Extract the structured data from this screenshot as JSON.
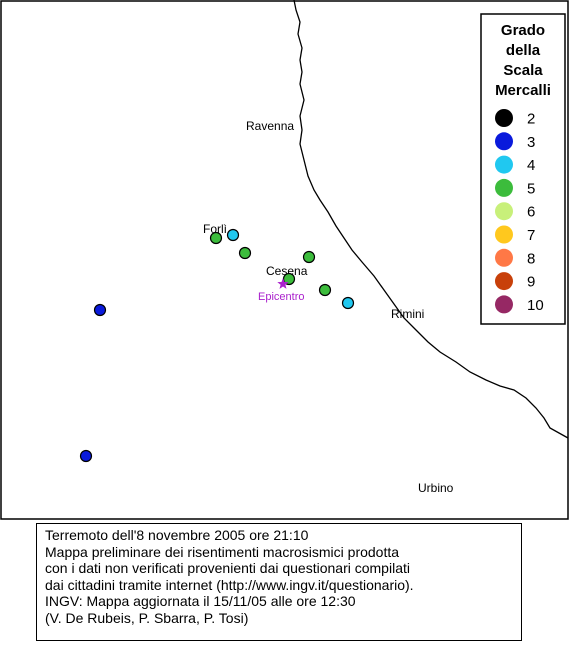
{
  "map": {
    "cities": [
      {
        "name": "Ravenna"
      },
      {
        "name": "Forlì"
      },
      {
        "name": "Cesena"
      },
      {
        "name": "Rimini"
      },
      {
        "name": "Urbino"
      }
    ],
    "epicenter_label": "Epicentro",
    "epicenter_color": "#aa22cc"
  },
  "legend": {
    "title_lines": [
      "Grado",
      "della",
      "Scala",
      "Mercalli"
    ],
    "items": [
      {
        "grade": "2",
        "color": "#000000"
      },
      {
        "grade": "3",
        "color": "#0a1adc"
      },
      {
        "grade": "4",
        "color": "#20c8f0"
      },
      {
        "grade": "5",
        "color": "#3cbc3c"
      },
      {
        "grade": "6",
        "color": "#c8f07a"
      },
      {
        "grade": "7",
        "color": "#ffc81e"
      },
      {
        "grade": "8",
        "color": "#ff7846"
      },
      {
        "grade": "9",
        "color": "#c8400a"
      },
      {
        "grade": "10",
        "color": "#962864"
      }
    ]
  },
  "observations": [
    {
      "grade": "5",
      "near": "Forlì"
    },
    {
      "grade": "4",
      "near": "Forlì"
    },
    {
      "grade": "5"
    },
    {
      "grade": "5"
    },
    {
      "grade": "5",
      "near": "Cesena"
    },
    {
      "grade": "5"
    },
    {
      "grade": "4"
    },
    {
      "grade": "3"
    },
    {
      "grade": "3"
    }
  ],
  "caption": {
    "lines": [
      "Terremoto dell'8 novembre 2005 ore 21:10",
      "Mappa preliminare dei risentimenti macrosismici prodotta",
      "con i dati non verificati provenienti dai questionari compilati",
      "dai cittadini tramite internet (http://www.ingv.it/questionario).",
      "INGV: Mappa aggiornata il 15/11/05 alle ore 12:30",
      "(V. De Rubeis, P. Sbarra, P. Tosi)"
    ]
  }
}
